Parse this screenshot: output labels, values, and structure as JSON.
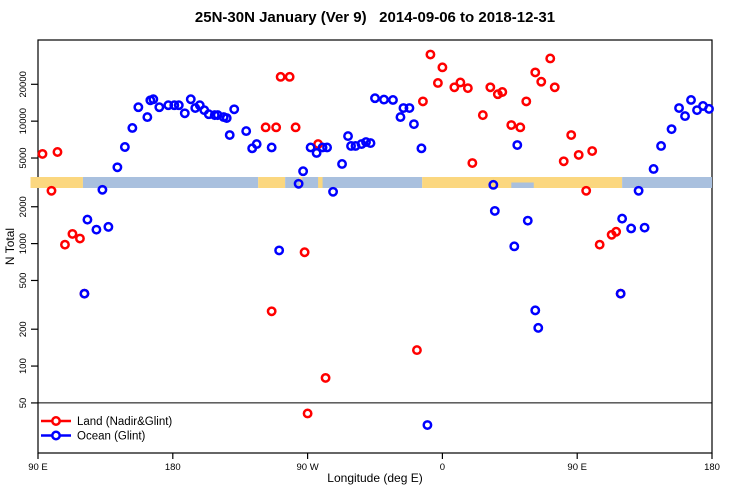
{
  "title": "25N-30N January (Ver 9)   2014-09-06 to 2018-12-31",
  "colors": {
    "land_series": "#ff0000",
    "ocean_series": "#0000ff",
    "band_land": "#fbd77f",
    "band_ocean": "#a9c0de",
    "axis": "#000000"
  },
  "chart_data": {
    "type": "scatter",
    "title": "25N-30N January (Ver 9)   2014-09-06 to 2018-12-31",
    "xlabel": "Longitude (deg E)",
    "ylabel": "N Total",
    "x_axis": {
      "domain": [
        90,
        540
      ],
      "ticks": [
        {
          "value": 90,
          "label": "90 E"
        },
        {
          "value": 180,
          "label": "180"
        },
        {
          "value": 270,
          "label": "90 W"
        },
        {
          "value": 360,
          "label": "0"
        },
        {
          "value": 450,
          "label": "90 E"
        },
        {
          "value": 540,
          "label": "180"
        }
      ]
    },
    "y_axis": {
      "scale": "log",
      "domain": [
        19.5,
        46000
      ],
      "ticks": [
        50,
        100,
        200,
        500,
        1000,
        2000,
        5000,
        10000,
        20000
      ]
    },
    "reference_line": {
      "value": 50
    },
    "land_ocean_band": {
      "description": "surface type strip along 25N-30N vs longitude",
      "segments": [
        {
          "surface": "land",
          "from": 85,
          "to": 120
        },
        {
          "surface": "ocean",
          "from": 120,
          "to": 237
        },
        {
          "surface": "land",
          "from": 237,
          "to": 255
        },
        {
          "surface": "ocean",
          "from": 255,
          "to": 346.5
        },
        {
          "surface": "land",
          "from": 346.5,
          "to": 480
        },
        {
          "surface": "ocean",
          "from": 480,
          "to": 540
        },
        {
          "surface": "land",
          "from": 264.5,
          "to": 266.5
        },
        {
          "surface": "land",
          "from": 277,
          "to": 280
        },
        {
          "surface": "ocean",
          "from": 406,
          "to": 421,
          "half": "bottom"
        }
      ]
    },
    "legend": {
      "position": "bottom-left"
    },
    "series": [
      {
        "name": "Land (Nadir&Glint)",
        "color": "#ff0000",
        "points": [
          [
            93,
            5400
          ],
          [
            103,
            5600
          ],
          [
            99,
            2700
          ],
          [
            113,
            1200
          ],
          [
            108,
            980
          ],
          [
            118,
            1100
          ],
          [
            121,
            390
          ],
          [
            242,
            8900
          ],
          [
            249,
            8900
          ],
          [
            262,
            8900
          ],
          [
            252,
            23000
          ],
          [
            258,
            23000
          ],
          [
            277,
            6500
          ],
          [
            268,
            850
          ],
          [
            246,
            280
          ],
          [
            282,
            80
          ],
          [
            270,
            41
          ],
          [
            352,
            35000
          ],
          [
            360,
            27500
          ],
          [
            357,
            20500
          ],
          [
            347,
            14500
          ],
          [
            368,
            18900
          ],
          [
            372,
            20700
          ],
          [
            377,
            18600
          ],
          [
            392,
            18900
          ],
          [
            397,
            16600
          ],
          [
            400,
            17300
          ],
          [
            387,
            11200
          ],
          [
            380,
            4550
          ],
          [
            343,
            135
          ],
          [
            432,
            32500
          ],
          [
            422,
            25000
          ],
          [
            426,
            21000
          ],
          [
            435,
            18900
          ],
          [
            416,
            14500
          ],
          [
            406,
            9300
          ],
          [
            412,
            8900
          ],
          [
            446,
            7700
          ],
          [
            441,
            4700
          ],
          [
            451,
            5300
          ],
          [
            460,
            5700
          ],
          [
            456,
            2700
          ],
          [
            465,
            980
          ],
          [
            473,
            1180
          ],
          [
            476,
            1250
          ],
          [
            479,
            390
          ]
        ]
      },
      {
        "name": "Ocean (Glint)",
        "color": "#0000ff",
        "points": [
          [
            157,
            13000
          ],
          [
            165,
            14800
          ],
          [
            163,
            10800
          ],
          [
            153,
            8800
          ],
          [
            148,
            6150
          ],
          [
            143,
            4200
          ],
          [
            133,
            2750
          ],
          [
            123,
            1570
          ],
          [
            129,
            1300
          ],
          [
            137,
            1370
          ],
          [
            121,
            390
          ],
          [
            167,
            15100
          ],
          [
            171,
            13000
          ],
          [
            177,
            13500
          ],
          [
            181,
            13500
          ],
          [
            184,
            13500
          ],
          [
            188,
            11600
          ],
          [
            192,
            15100
          ],
          [
            195,
            12800
          ],
          [
            198,
            13500
          ],
          [
            201,
            12300
          ],
          [
            204,
            11400
          ],
          [
            208,
            11200
          ],
          [
            210,
            11200
          ],
          [
            214,
            10800
          ],
          [
            216,
            10600
          ],
          [
            221,
            12500
          ],
          [
            218,
            7700
          ],
          [
            229,
            8300
          ],
          [
            233,
            6000
          ],
          [
            236,
            6500
          ],
          [
            246,
            6100
          ],
          [
            251,
            880
          ],
          [
            264,
            3080
          ],
          [
            267,
            3900
          ],
          [
            272,
            6100
          ],
          [
            276,
            5500
          ],
          [
            280,
            6100
          ],
          [
            283,
            6100
          ],
          [
            287,
            2650
          ],
          [
            293,
            4470
          ],
          [
            297,
            7550
          ],
          [
            299,
            6270
          ],
          [
            302,
            6270
          ],
          [
            306,
            6500
          ],
          [
            309,
            6750
          ],
          [
            312,
            6620
          ],
          [
            315,
            15400
          ],
          [
            321,
            15000
          ],
          [
            327,
            14900
          ],
          [
            334,
            12800
          ],
          [
            338,
            12800
          ],
          [
            332,
            10800
          ],
          [
            341,
            9450
          ],
          [
            346,
            6000
          ],
          [
            350,
            33
          ],
          [
            394,
            3020
          ],
          [
            395,
            1850
          ],
          [
            410,
            6380
          ],
          [
            417,
            1540
          ],
          [
            408,
            950
          ],
          [
            422,
            285
          ],
          [
            424,
            205
          ],
          [
            479,
            390
          ],
          [
            480,
            1600
          ],
          [
            486,
            1330
          ],
          [
            495,
            1350
          ],
          [
            491,
            2700
          ],
          [
            501,
            4070
          ],
          [
            506,
            6270
          ],
          [
            513,
            8600
          ],
          [
            518,
            12800
          ],
          [
            522,
            11000
          ],
          [
            526,
            14900
          ],
          [
            530,
            12300
          ],
          [
            534,
            13300
          ],
          [
            538,
            12600
          ]
        ]
      }
    ]
  }
}
